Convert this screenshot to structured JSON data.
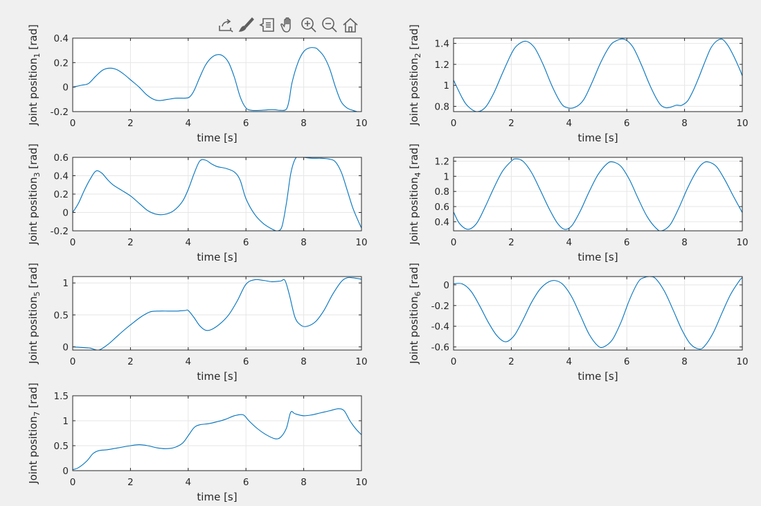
{
  "toolbar": [
    {
      "name": "export-icon"
    },
    {
      "name": "brush-icon"
    },
    {
      "name": "data-tips-icon"
    },
    {
      "name": "pan-icon"
    },
    {
      "name": "zoom-in-icon"
    },
    {
      "name": "zoom-out-icon"
    },
    {
      "name": "home-icon"
    }
  ],
  "colors": {
    "line": "#0072bd",
    "axes": "#262626",
    "grid": "#e6e6e6",
    "background": "#f0f0f0"
  },
  "chart_data": [
    {
      "type": "line",
      "xlabel": "time [s]",
      "ylabel_prefix": "Joint position",
      "ylabel_sub": "1",
      "ylabel_suffix": " [rad]",
      "xlim": [
        0,
        10
      ],
      "ylim": [
        -0.2,
        0.4
      ],
      "xticks": [
        0,
        2,
        4,
        6,
        8,
        10
      ],
      "xtick_labels": [
        "0",
        "2",
        "4",
        "6",
        "8",
        "10"
      ],
      "yticks": [
        -0.2,
        0,
        0.2,
        0.4
      ],
      "ytick_labels": [
        "-0.2",
        "0",
        "0.2",
        "0.4"
      ],
      "grid": true,
      "series": [
        {
          "x": [
            0,
            0.3,
            0.55,
            0.8,
            1.05,
            1.3,
            1.55,
            1.8,
            2.05,
            2.3,
            2.55,
            2.8,
            3.0,
            3.3,
            3.6,
            3.9,
            4.05,
            4.2,
            4.4,
            4.6,
            4.8,
            5.0,
            5.2,
            5.4,
            5.6,
            5.8,
            6.0,
            6.2,
            6.5,
            6.8,
            7.0,
            7.2,
            7.4,
            7.5,
            7.6,
            7.8,
            8.0,
            8.2,
            8.4,
            8.5,
            8.7,
            8.9,
            9.1,
            9.3,
            9.5,
            9.7,
            9.85,
            10
          ],
          "y": [
            0,
            0.015,
            0.03,
            0.09,
            0.14,
            0.155,
            0.14,
            0.1,
            0.05,
            0.0,
            -0.06,
            -0.1,
            -0.11,
            -0.1,
            -0.09,
            -0.09,
            -0.08,
            -0.03,
            0.08,
            0.18,
            0.24,
            0.265,
            0.255,
            0.2,
            0.08,
            -0.08,
            -0.17,
            -0.19,
            -0.19,
            -0.185,
            -0.185,
            -0.19,
            -0.18,
            -0.1,
            0.04,
            0.2,
            0.29,
            0.32,
            0.32,
            0.305,
            0.25,
            0.15,
            0.0,
            -0.12,
            -0.17,
            -0.19,
            -0.2,
            -0.2
          ]
        }
      ]
    },
    {
      "type": "line",
      "xlabel": "time [s]",
      "ylabel_prefix": "Joint position",
      "ylabel_sub": "2",
      "ylabel_suffix": " [rad]",
      "xlim": [
        0,
        10
      ],
      "ylim": [
        0.75,
        1.45
      ],
      "xticks": [
        0,
        2,
        4,
        6,
        8,
        10
      ],
      "xtick_labels": [
        "0",
        "2",
        "4",
        "6",
        "8",
        "10"
      ],
      "yticks": [
        0.8,
        1,
        1.2,
        1.4
      ],
      "ytick_labels": [
        "0.8",
        "1",
        "1.2",
        "1.4"
      ],
      "grid": true,
      "series": [
        {
          "x": [
            0,
            0.3,
            0.5,
            0.8,
            1.1,
            1.4,
            1.7,
            2.0,
            2.2,
            2.5,
            2.8,
            3.1,
            3.4,
            3.7,
            3.9,
            4.2,
            4.5,
            4.8,
            5.1,
            5.4,
            5.6,
            5.9,
            6.2,
            6.5,
            6.8,
            7.1,
            7.3,
            7.5,
            7.7,
            7.8,
            7.9,
            8.1,
            8.3,
            8.5,
            8.7,
            8.9,
            9.1,
            9.3,
            9.5,
            9.7,
            9.9,
            10
          ],
          "y": [
            1.05,
            0.88,
            0.8,
            0.75,
            0.79,
            0.93,
            1.12,
            1.3,
            1.38,
            1.42,
            1.36,
            1.2,
            1.0,
            0.84,
            0.79,
            0.79,
            0.86,
            1.03,
            1.22,
            1.37,
            1.42,
            1.44,
            1.37,
            1.2,
            1.0,
            0.84,
            0.79,
            0.79,
            0.81,
            0.81,
            0.81,
            0.85,
            0.95,
            1.08,
            1.22,
            1.35,
            1.42,
            1.44,
            1.38,
            1.28,
            1.16,
            1.09
          ]
        }
      ]
    },
    {
      "type": "line",
      "xlabel": "time [s]",
      "ylabel_prefix": "Joint position",
      "ylabel_sub": "3",
      "ylabel_suffix": " [rad]",
      "xlim": [
        0,
        10
      ],
      "ylim": [
        -0.2,
        0.6
      ],
      "xticks": [
        0,
        2,
        4,
        6,
        8,
        10
      ],
      "xtick_labels": [
        "0",
        "2",
        "4",
        "6",
        "8",
        "10"
      ],
      "yticks": [
        -0.2,
        0,
        0.2,
        0.4,
        0.6
      ],
      "ytick_labels": [
        "-0.2",
        "0",
        "0.2",
        "0.4",
        "0.6"
      ],
      "grid": true,
      "series": [
        {
          "x": [
            0,
            0.2,
            0.4,
            0.6,
            0.8,
            1.0,
            1.2,
            1.4,
            1.7,
            2.0,
            2.3,
            2.6,
            2.9,
            3.2,
            3.5,
            3.8,
            4.0,
            4.2,
            4.4,
            4.6,
            4.8,
            5.0,
            5.3,
            5.6,
            5.8,
            6.0,
            6.3,
            6.6,
            6.9,
            7.1,
            7.25,
            7.4,
            7.55,
            7.7,
            7.85,
            8.0,
            8.3,
            8.6,
            8.9,
            9.1,
            9.3,
            9.5,
            9.7,
            9.9,
            10
          ],
          "y": [
            0,
            0.1,
            0.24,
            0.36,
            0.45,
            0.43,
            0.36,
            0.3,
            0.24,
            0.18,
            0.1,
            0.02,
            -0.02,
            -0.02,
            0.02,
            0.12,
            0.25,
            0.42,
            0.56,
            0.57,
            0.53,
            0.5,
            0.48,
            0.44,
            0.35,
            0.15,
            -0.02,
            -0.12,
            -0.18,
            -0.2,
            -0.15,
            0.1,
            0.42,
            0.58,
            0.61,
            0.6,
            0.59,
            0.59,
            0.58,
            0.55,
            0.44,
            0.25,
            0.05,
            -0.1,
            -0.17
          ]
        }
      ]
    },
    {
      "type": "line",
      "xlabel": "time [s]",
      "ylabel_prefix": "Joint position",
      "ylabel_sub": "4",
      "ylabel_suffix": " [rad]",
      "xlim": [
        0,
        10
      ],
      "ylim": [
        0.28,
        1.25
      ],
      "xticks": [
        0,
        2,
        4,
        6,
        8,
        10
      ],
      "xtick_labels": [
        "0",
        "2",
        "4",
        "6",
        "8",
        "10"
      ],
      "yticks": [
        0.4,
        0.6,
        0.8,
        1,
        1.2
      ],
      "ytick_labels": [
        "0.4",
        "0.6",
        "0.8",
        "1",
        "1.2"
      ],
      "grid": true,
      "series": [
        {
          "x": [
            0,
            0.2,
            0.5,
            0.8,
            1.1,
            1.4,
            1.7,
            2.0,
            2.15,
            2.4,
            2.7,
            3.0,
            3.3,
            3.6,
            3.85,
            4.1,
            4.4,
            4.7,
            5.0,
            5.3,
            5.5,
            5.8,
            6.1,
            6.4,
            6.7,
            7.0,
            7.2,
            7.5,
            7.8,
            8.1,
            8.4,
            8.6,
            8.8,
            9.1,
            9.4,
            9.7,
            10
          ],
          "y": [
            0.53,
            0.38,
            0.3,
            0.38,
            0.6,
            0.85,
            1.07,
            1.2,
            1.23,
            1.2,
            1.05,
            0.82,
            0.58,
            0.38,
            0.3,
            0.35,
            0.55,
            0.8,
            1.02,
            1.16,
            1.19,
            1.13,
            0.95,
            0.7,
            0.47,
            0.32,
            0.28,
            0.36,
            0.58,
            0.84,
            1.06,
            1.16,
            1.19,
            1.13,
            0.95,
            0.73,
            0.52
          ]
        }
      ]
    },
    {
      "type": "line",
      "xlabel": "time [s]",
      "ylabel_prefix": "Joint position",
      "ylabel_sub": "5",
      "ylabel_suffix": " [rad]",
      "xlim": [
        0,
        10
      ],
      "ylim": [
        -0.05,
        1.1
      ],
      "xticks": [
        0,
        2,
        4,
        6,
        8,
        10
      ],
      "xtick_labels": [
        "0",
        "2",
        "4",
        "6",
        "8",
        "10"
      ],
      "yticks": [
        0,
        0.5,
        1
      ],
      "ytick_labels": [
        "0",
        "0.5",
        "1"
      ],
      "grid": true,
      "series": [
        {
          "x": [
            0,
            0.3,
            0.6,
            0.9,
            1.2,
            1.5,
            1.8,
            2.1,
            2.4,
            2.7,
            3.0,
            3.3,
            3.6,
            3.9,
            4.0,
            4.2,
            4.4,
            4.6,
            4.8,
            5.1,
            5.4,
            5.7,
            6.0,
            6.3,
            6.6,
            6.9,
            7.2,
            7.35,
            7.5,
            7.7,
            7.9,
            8.1,
            8.4,
            8.7,
            9.0,
            9.3,
            9.5,
            9.7,
            10
          ],
          "y": [
            0,
            -0.01,
            -0.02,
            -0.05,
            0.03,
            0.15,
            0.27,
            0.38,
            0.48,
            0.55,
            0.56,
            0.56,
            0.56,
            0.57,
            0.57,
            0.46,
            0.33,
            0.26,
            0.27,
            0.36,
            0.5,
            0.72,
            0.98,
            1.05,
            1.04,
            1.02,
            1.03,
            1.04,
            0.82,
            0.46,
            0.34,
            0.32,
            0.39,
            0.57,
            0.82,
            1.02,
            1.08,
            1.08,
            1.06
          ]
        }
      ]
    },
    {
      "type": "line",
      "xlabel": "time [s]",
      "ylabel_prefix": "Joint position",
      "ylabel_sub": "6",
      "ylabel_suffix": " [rad]",
      "xlim": [
        0,
        10
      ],
      "ylim": [
        -0.63,
        0.08
      ],
      "xticks": [
        0,
        2,
        4,
        6,
        8,
        10
      ],
      "xtick_labels": [
        "0",
        "2",
        "4",
        "6",
        "8",
        "10"
      ],
      "yticks": [
        -0.6,
        -0.4,
        -0.2,
        0
      ],
      "ytick_labels": [
        "-0.6",
        "-0.4",
        "-0.2",
        "0"
      ],
      "grid": true,
      "series": [
        {
          "x": [
            0,
            0.3,
            0.6,
            0.9,
            1.2,
            1.5,
            1.8,
            2.1,
            2.4,
            2.7,
            3.0,
            3.3,
            3.55,
            3.8,
            4.1,
            4.4,
            4.7,
            5.0,
            5.2,
            5.5,
            5.8,
            6.1,
            6.4,
            6.6,
            6.8,
            7.0,
            7.3,
            7.6,
            7.9,
            8.2,
            8.5,
            8.7,
            9.0,
            9.3,
            9.6,
            9.9,
            10
          ],
          "y": [
            0.01,
            0.01,
            -0.06,
            -0.2,
            -0.36,
            -0.49,
            -0.55,
            -0.49,
            -0.34,
            -0.17,
            -0.04,
            0.03,
            0.04,
            0.0,
            -0.12,
            -0.3,
            -0.48,
            -0.59,
            -0.6,
            -0.53,
            -0.36,
            -0.14,
            0.03,
            0.07,
            0.08,
            0.06,
            -0.06,
            -0.24,
            -0.43,
            -0.57,
            -0.62,
            -0.59,
            -0.46,
            -0.27,
            -0.09,
            0.04,
            0.07
          ]
        }
      ]
    },
    {
      "type": "line",
      "xlabel": "time [s]",
      "ylabel_prefix": "Joint position",
      "ylabel_sub": "7",
      "ylabel_suffix": " [rad]",
      "xlim": [
        0,
        10
      ],
      "ylim": [
        0,
        1.5
      ],
      "xticks": [
        0,
        2,
        4,
        6,
        8,
        10
      ],
      "xtick_labels": [
        "0",
        "2",
        "4",
        "6",
        "8",
        "10"
      ],
      "yticks": [
        0,
        0.5,
        1,
        1.5
      ],
      "ytick_labels": [
        "0",
        "0.5",
        "1",
        "1.5"
      ],
      "grid": true,
      "series": [
        {
          "x": [
            0,
            0.2,
            0.5,
            0.7,
            0.9,
            1.2,
            1.6,
            2.0,
            2.3,
            2.6,
            2.9,
            3.2,
            3.5,
            3.8,
            4.0,
            4.2,
            4.4,
            4.7,
            5.0,
            5.3,
            5.6,
            5.9,
            6.1,
            6.4,
            6.7,
            7.0,
            7.2,
            7.4,
            7.55,
            7.7,
            8.0,
            8.3,
            8.6,
            8.9,
            9.2,
            9.4,
            9.6,
            9.8,
            10
          ],
          "y": [
            0.02,
            0.06,
            0.2,
            0.34,
            0.4,
            0.42,
            0.46,
            0.5,
            0.52,
            0.5,
            0.46,
            0.44,
            0.46,
            0.55,
            0.7,
            0.86,
            0.92,
            0.94,
            0.98,
            1.03,
            1.1,
            1.12,
            1.0,
            0.84,
            0.72,
            0.64,
            0.67,
            0.85,
            1.17,
            1.14,
            1.1,
            1.12,
            1.16,
            1.2,
            1.24,
            1.2,
            1.0,
            0.84,
            0.72
          ]
        }
      ]
    }
  ]
}
